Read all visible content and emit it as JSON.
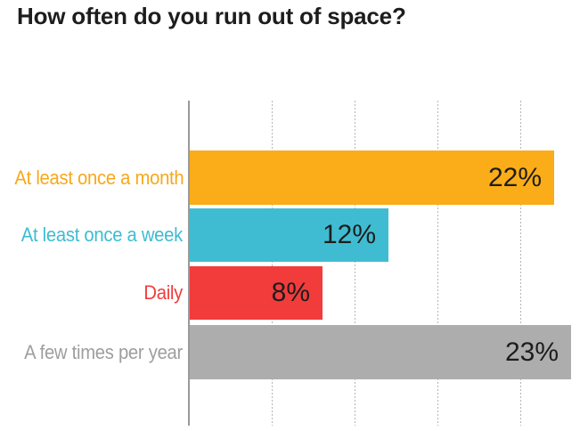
{
  "chart_data": {
    "type": "bar",
    "orientation": "horizontal",
    "title": "How often do you run out of space?",
    "categories": [
      "At least once a month",
      "At least once a week",
      "Daily",
      "A few times per year"
    ],
    "values": [
      22,
      12,
      8,
      23
    ],
    "value_labels": [
      "22%",
      "12%",
      "8%",
      "23%"
    ],
    "bar_colors": [
      "#FAAD18",
      "#40BCD2",
      "#F23C3C",
      "#ADADAD"
    ],
    "category_label_colors": [
      "#F7A81B",
      "#3DBCD2",
      "#F23C3C",
      "#9E9E9E"
    ],
    "xlabel": "",
    "ylabel": "",
    "xlim": [
      0,
      24
    ],
    "gridlines_x": [
      5,
      10,
      15,
      20
    ],
    "grid_style": "dotted-vertical",
    "legend": "none",
    "value_label_position": "inside-end",
    "title_color": "#1d1d1d",
    "axis_color": "#9a9a9a",
    "grid_color": "#b5b5b5"
  }
}
